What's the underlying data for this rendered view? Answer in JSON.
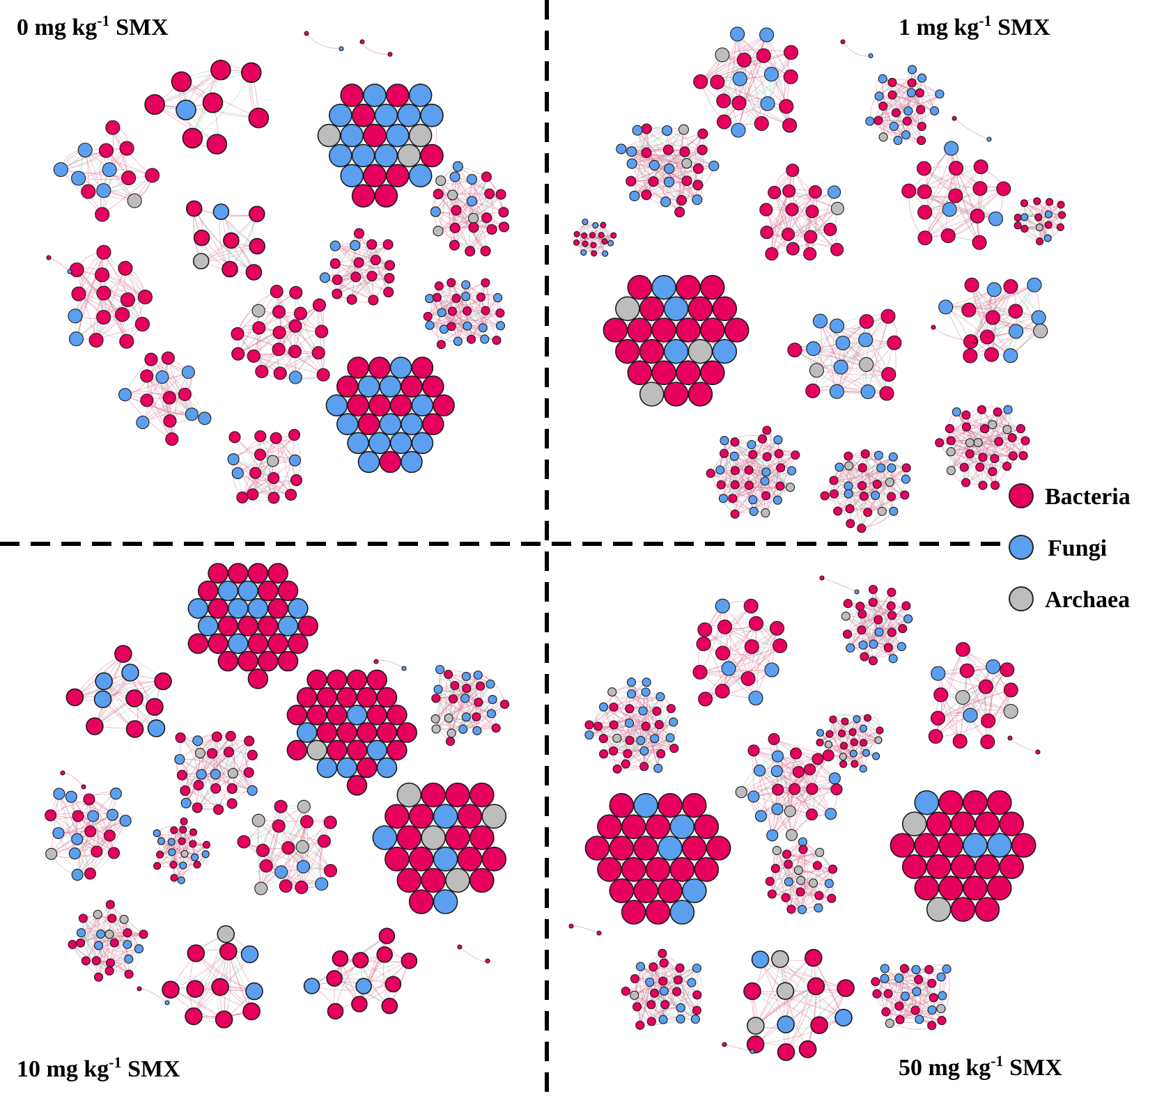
{
  "panels": [
    {
      "id": "p0",
      "title_pre": "0 mg kg",
      "title_sup": "-1",
      "title_post": " SMX",
      "large_modules": 4,
      "small_modules": 8
    },
    {
      "id": "p1",
      "title_pre": "1 mg kg",
      "title_sup": "-1",
      "title_post": " SMX",
      "large_modules": 5,
      "small_modules": 8
    },
    {
      "id": "p10",
      "title_pre": "10 mg kg",
      "title_sup": "-1",
      "title_post": " SMX",
      "large_modules": 5,
      "small_modules": 7
    },
    {
      "id": "p50",
      "title_pre": "50 mg kg",
      "title_sup": "-1",
      "title_post": " SMX",
      "large_modules": 4,
      "small_modules": 7
    }
  ],
  "legend": [
    {
      "label": "Bacteria",
      "color": "#e8005f"
    },
    {
      "label": "Fungi",
      "color": "#5b9ff0"
    },
    {
      "label": "Archaea",
      "color": "#bdbdbd"
    }
  ],
  "styles": {
    "edge_positive": "#e07a9a",
    "edge_negative": "#8ed8c0",
    "divider": "#000000"
  }
}
